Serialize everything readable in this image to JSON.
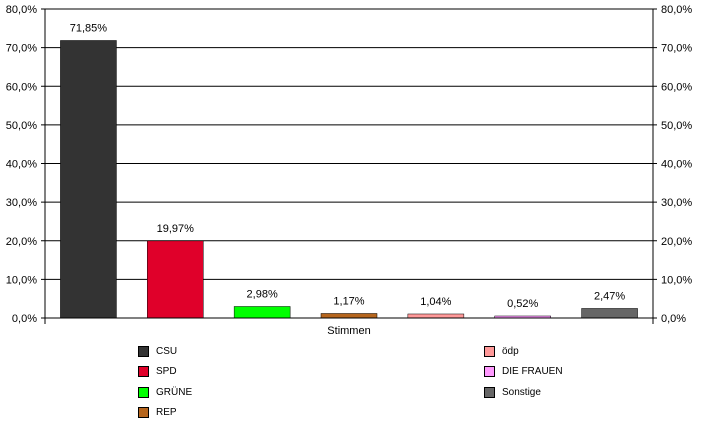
{
  "chart_data": {
    "type": "bar",
    "xlabel": "Stimmen",
    "ylabel": "",
    "ylim": [
      0,
      80
    ],
    "y_ticks": [
      "0,0%",
      "10,0%",
      "20,0%",
      "30,0%",
      "40,0%",
      "50,0%",
      "60,0%",
      "70,0%",
      "80,0%"
    ],
    "grid": true,
    "series": [
      {
        "name": "CSU",
        "value": 71.85,
        "label": "71,85%",
        "color": "#333333"
      },
      {
        "name": "SPD",
        "value": 19.97,
        "label": "19,97%",
        "color": "#e0002a"
      },
      {
        "name": "GRÜNE",
        "value": 2.98,
        "label": "2,98%",
        "color": "#00ff00"
      },
      {
        "name": "REP",
        "value": 1.17,
        "label": "1,17%",
        "color": "#b5651d"
      },
      {
        "name": "ödp",
        "value": 1.04,
        "label": "1,04%",
        "color": "#ff9999"
      },
      {
        "name": "DIE FRAUEN",
        "value": 0.52,
        "label": "0,52%",
        "color": "#ff99ff"
      },
      {
        "name": "Sonstige",
        "value": 2.47,
        "label": "2,47%",
        "color": "#666666"
      }
    ]
  }
}
